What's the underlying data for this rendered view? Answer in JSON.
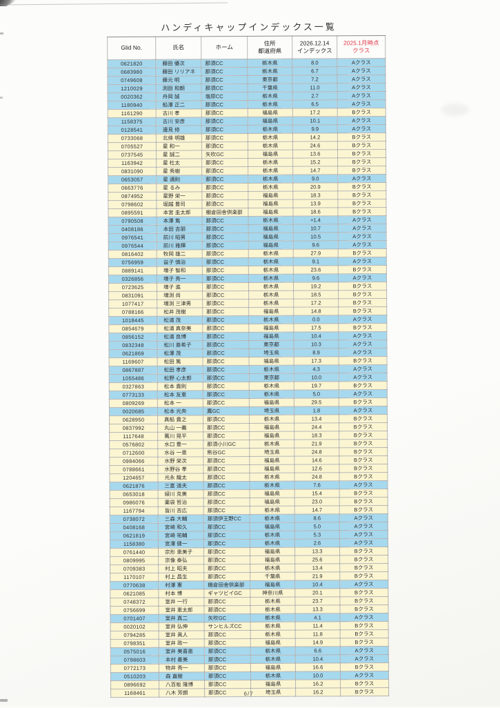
{
  "page": {
    "title": "ハンディキャップインデックス一覧",
    "footer_page": "6/7"
  },
  "colors": {
    "class_a_row": "#a6d8ee",
    "class_b_row": "#fbf5d1",
    "highlight_header": "#e0394a",
    "grid_border": "#7d7d7d"
  },
  "table": {
    "headers": [
      {
        "label": "Glid No."
      },
      {
        "label": "氏名"
      },
      {
        "label": "ホーム"
      },
      {
        "label": "住所\n都道府県"
      },
      {
        "label": "2026.12.14\nインデックス"
      },
      {
        "label": "2025.1月時点\nクラス"
      }
    ],
    "rows": [
      {
        "id": "0621820",
        "name": "藤田 優次",
        "home": "那須CC",
        "pref": "栃木県",
        "idx": "8.0",
        "cls": "Aクラス"
      },
      {
        "id": "0683980",
        "name": "藤田 リリアネ",
        "home": "那須CC",
        "pref": "栃木県",
        "idx": "6.7",
        "cls": "Aクラス"
      },
      {
        "id": "0749608",
        "name": "藤元 明",
        "home": "那須CC",
        "pref": "東京都",
        "idx": "7.2",
        "cls": "Aクラス"
      },
      {
        "id": "1210029",
        "name": "渕田 和朗",
        "home": "那須CC",
        "pref": "千葉県",
        "idx": "11.0",
        "cls": "Aクラス"
      },
      {
        "id": "0020362",
        "name": "舟岡 誠",
        "home": "塩原CC",
        "pref": "栃木県",
        "idx": "2.7",
        "cls": "Aクラス"
      },
      {
        "id": "1180940",
        "name": "船澤 正二",
        "home": "那須CC",
        "pref": "栃木県",
        "idx": "6.5",
        "cls": "Aクラス"
      },
      {
        "id": "1161290",
        "name": "古川 孝",
        "home": "那須CC",
        "pref": "福島県",
        "idx": "17.2",
        "cls": "Bクラス"
      },
      {
        "id": "1158375",
        "name": "古川 安彦",
        "home": "那須CC",
        "pref": "福島県",
        "idx": "10.1",
        "cls": "Aクラス"
      },
      {
        "id": "0128541",
        "name": "邊見 修",
        "home": "那須CC",
        "pref": "栃木県",
        "idx": "9.9",
        "cls": "Aクラス"
      },
      {
        "id": "0733068",
        "name": "北條 明雄",
        "home": "那須CC",
        "pref": "栃木県",
        "idx": "14.2",
        "cls": "Bクラス"
      },
      {
        "id": "0705527",
        "name": "星 和一",
        "home": "那須CC",
        "pref": "栃木県",
        "idx": "24.6",
        "cls": "Bクラス"
      },
      {
        "id": "0737545",
        "name": "星 誠二",
        "home": "矢吹GC",
        "pref": "福島県",
        "idx": "13.6",
        "cls": "Bクラス"
      },
      {
        "id": "1163942",
        "name": "星 杜太",
        "home": "那須CC",
        "pref": "栃木県",
        "idx": "15.2",
        "cls": "Bクラス"
      },
      {
        "id": "0831090",
        "name": "星 秀樹",
        "home": "那須CC",
        "pref": "栃木県",
        "idx": "14.7",
        "cls": "Bクラス"
      },
      {
        "id": "0653057",
        "name": "星 通則",
        "home": "那須CC",
        "pref": "栃木県",
        "idx": "9.0",
        "cls": "Aクラス"
      },
      {
        "id": "0663776",
        "name": "星 るみ",
        "home": "那須CC",
        "pref": "栃木県",
        "idx": "20.9",
        "cls": "Bクラス"
      },
      {
        "id": "0874952",
        "name": "星野 栄一",
        "home": "那須CC",
        "pref": "福島県",
        "idx": "18.3",
        "cls": "Bクラス"
      },
      {
        "id": "0798602",
        "name": "堀越 豊司",
        "home": "那須CC",
        "pref": "福島県",
        "idx": "13.9",
        "cls": "Bクラス"
      },
      {
        "id": "0895591",
        "name": "本宮 圭太郎",
        "home": "棚倉田舎倶楽部",
        "pref": "福島県",
        "idx": "18.6",
        "cls": "Bクラス"
      },
      {
        "id": "0790508",
        "name": "本澤 篤",
        "home": "那須CC",
        "pref": "栃木県",
        "idx": "+1.4",
        "cls": "Aクラス"
      },
      {
        "id": "0408186",
        "name": "本田 吉朋",
        "home": "那須CC",
        "pref": "福島県",
        "idx": "10.7",
        "cls": "Aクラス"
      },
      {
        "id": "0976541",
        "name": "前川 昭男",
        "home": "那須CC",
        "pref": "福島県",
        "idx": "10.5",
        "cls": "Aクラス"
      },
      {
        "id": "0976544",
        "name": "前川 雅輝",
        "home": "那須CC",
        "pref": "福島県",
        "idx": "9.6",
        "cls": "Aクラス"
      },
      {
        "id": "0816402",
        "name": "牧岡 雄二",
        "home": "那須CC",
        "pref": "栃木県",
        "idx": "27.9",
        "cls": "Bクラス"
      },
      {
        "id": "0756959",
        "name": "益子 慎治",
        "home": "那須CC",
        "pref": "栃木県",
        "idx": "9.1",
        "cls": "Aクラス"
      },
      {
        "id": "0889141",
        "name": "増子 智和",
        "home": "那須CC",
        "pref": "栃木県",
        "idx": "23.6",
        "cls": "Bクラス"
      },
      {
        "id": "0326856",
        "name": "増子 秀一",
        "home": "那須CC",
        "pref": "栃木県",
        "idx": "9.6",
        "cls": "Aクラス"
      },
      {
        "id": "0723625",
        "name": "増子 進",
        "home": "那須CC",
        "pref": "栃木県",
        "idx": "19.2",
        "cls": "Bクラス"
      },
      {
        "id": "0831091",
        "name": "増渕 尚",
        "home": "那須CC",
        "pref": "栃木県",
        "idx": "18.5",
        "cls": "Bクラス"
      },
      {
        "id": "1077417",
        "name": "増渕 三津男",
        "home": "那須CC",
        "pref": "栃木県",
        "idx": "17.2",
        "cls": "Bクラス"
      },
      {
        "id": "0788166",
        "name": "松井 茂樹",
        "home": "那須CC",
        "pref": "福島県",
        "idx": "14.8",
        "cls": "Bクラス"
      },
      {
        "id": "1018445",
        "name": "松浦 茂",
        "home": "那須CC",
        "pref": "栃木県",
        "idx": "0.0",
        "cls": "Aクラス"
      },
      {
        "id": "0854679",
        "name": "松浦 真奈美",
        "home": "那須CC",
        "pref": "福島県",
        "idx": "17.5",
        "cls": "Bクラス"
      },
      {
        "id": "0856152",
        "name": "松浦 良博",
        "home": "那須CC",
        "pref": "福島県",
        "idx": "10.4",
        "cls": "Aクラス"
      },
      {
        "id": "0832348",
        "name": "松川 亜希子",
        "home": "那須CC",
        "pref": "東京都",
        "idx": "10.3",
        "cls": "Aクラス"
      },
      {
        "id": "0621869",
        "name": "松澤 茂",
        "home": "那須CC",
        "pref": "埼玉県",
        "idx": "8.9",
        "cls": "Aクラス"
      },
      {
        "id": "1169607",
        "name": "松田 篤",
        "home": "那須CC",
        "pref": "福島県",
        "idx": "17.3",
        "cls": "Bクラス"
      },
      {
        "id": "0867887",
        "name": "松田 孝彦",
        "home": "那須CC",
        "pref": "栃木県",
        "idx": "4.3",
        "cls": "Aクラス"
      },
      {
        "id": "1055486",
        "name": "松野 心太郎",
        "home": "那須CC",
        "pref": "東京都",
        "idx": "10.0",
        "cls": "Aクラス"
      },
      {
        "id": "0327863",
        "name": "松本 貴則",
        "home": "那須CC",
        "pref": "栃木県",
        "idx": "19.7",
        "cls": "Bクラス"
      },
      {
        "id": "0773133",
        "name": "松本 友恵",
        "home": "那須CC",
        "pref": "栃木県",
        "idx": "5.0",
        "cls": "Aクラス"
      },
      {
        "id": "0809269",
        "name": "松本 一",
        "home": "那須CC",
        "pref": "福島県",
        "idx": "29.5",
        "cls": "Bクラス"
      },
      {
        "id": "0020685",
        "name": "松本 光央",
        "home": "鷹GC",
        "pref": "埼玉県",
        "idx": "1.8",
        "cls": "Aクラス"
      },
      {
        "id": "0628950",
        "name": "真船 貴之",
        "home": "那須CC",
        "pref": "栃木県",
        "idx": "13.4",
        "cls": "Bクラス"
      },
      {
        "id": "0837992",
        "name": "丸山 一義",
        "home": "那須CC",
        "pref": "福島県",
        "idx": "24.4",
        "cls": "Bクラス"
      },
      {
        "id": "1117648",
        "name": "萬川 晃平",
        "home": "那須CC",
        "pref": "福島県",
        "idx": "18.3",
        "cls": "Bクラス"
      },
      {
        "id": "0576802",
        "name": "水口 豊一",
        "home": "那須小川GC",
        "pref": "栃木県",
        "idx": "21.9",
        "cls": "Bクラス"
      },
      {
        "id": "0712600",
        "name": "水谷 一恵",
        "home": "熊谷GC",
        "pref": "埼玉県",
        "idx": "24.8",
        "cls": "Bクラス"
      },
      {
        "id": "0984066",
        "name": "水野 栄次",
        "home": "那須CC",
        "pref": "福島県",
        "idx": "14.6",
        "cls": "Bクラス"
      },
      {
        "id": "0788661",
        "name": "水野谷 孝",
        "home": "那須CC",
        "pref": "福島県",
        "idx": "12.6",
        "cls": "Bクラス"
      },
      {
        "id": "1204657",
        "name": "光永 龍太",
        "home": "那須CC",
        "pref": "栃木県",
        "idx": "24.8",
        "cls": "Bクラス"
      },
      {
        "id": "0621876",
        "name": "三富 道夫",
        "home": "那須CC",
        "pref": "栃木県",
        "idx": "7.6",
        "cls": "Aクラス"
      },
      {
        "id": "0653018",
        "name": "緑川 克美",
        "home": "那須CC",
        "pref": "福島県",
        "idx": "15.4",
        "cls": "Bクラス"
      },
      {
        "id": "0986076",
        "name": "薬袋 哲治",
        "home": "那須CC",
        "pref": "福島県",
        "idx": "23.0",
        "cls": "Bクラス"
      },
      {
        "id": "1167794",
        "name": "皆川 吉広",
        "home": "那須CC",
        "pref": "栃木県",
        "idx": "14.7",
        "cls": "Bクラス"
      },
      {
        "id": "0738072",
        "name": "三森 大輔",
        "home": "那須伊王野CC",
        "pref": "栃木県",
        "idx": "8.6",
        "cls": "Aクラス"
      },
      {
        "id": "0408168",
        "name": "宮崎 和久",
        "home": "那須CC",
        "pref": "福島県",
        "idx": "5.0",
        "cls": "Aクラス"
      },
      {
        "id": "0621819",
        "name": "宮崎 祐輔",
        "home": "那須CC",
        "pref": "栃木県",
        "idx": "5.3",
        "cls": "Aクラス"
      },
      {
        "id": "1158380",
        "name": "宮澤 健一",
        "home": "那須CC",
        "pref": "栃木県",
        "idx": "2.6",
        "cls": "Aクラス"
      },
      {
        "id": "0761440",
        "name": "宗形 恵美子",
        "home": "那須CC",
        "pref": "福島県",
        "idx": "13.3",
        "cls": "Bクラス"
      },
      {
        "id": "0809995",
        "name": "宗像 泰弘",
        "home": "那須CC",
        "pref": "福島県",
        "idx": "25.6",
        "cls": "Bクラス"
      },
      {
        "id": "0709383",
        "name": "村上 昭夫",
        "home": "那須CC",
        "pref": "栃木県",
        "idx": "13.4",
        "cls": "Bクラス"
      },
      {
        "id": "1170107",
        "name": "村上 昌生",
        "home": "那須CC",
        "pref": "千葉県",
        "idx": "21.9",
        "cls": "Bクラス"
      },
      {
        "id": "0770638",
        "name": "村澤 憲",
        "home": "棚倉田舎倶楽部",
        "pref": "福島県",
        "idx": "10.4",
        "cls": "Aクラス"
      },
      {
        "id": "0621085",
        "name": "村本 博",
        "home": "ギャツビイGC",
        "pref": "神奈川県",
        "idx": "20.1",
        "cls": "Bクラス"
      },
      {
        "id": "0748372",
        "name": "室井 一行",
        "home": "那須CC",
        "pref": "栃木県",
        "idx": "23.7",
        "cls": "Bクラス"
      },
      {
        "id": "0756699",
        "name": "室井 恵太郎",
        "home": "那須CC",
        "pref": "栃木県",
        "idx": "13.3",
        "cls": "Bクラス"
      },
      {
        "id": "0701407",
        "name": "室井 真二",
        "home": "矢吹GC",
        "pref": "栃木県",
        "idx": "4.1",
        "cls": "Aクラス"
      },
      {
        "id": "0020102",
        "name": "室井 弘伸",
        "home": "サンヒルズCC",
        "pref": "栃木県",
        "idx": "11.4",
        "cls": "Bクラス"
      },
      {
        "id": "0794285",
        "name": "室井 眞人",
        "home": "那須CC",
        "pref": "栃木県",
        "idx": "11.8",
        "cls": "Bクラス"
      },
      {
        "id": "0798351",
        "name": "室井 政一",
        "home": "那須CC",
        "pref": "福島県",
        "idx": "14.9",
        "cls": "Bクラス"
      },
      {
        "id": "0575016",
        "name": "室井 美喜恵",
        "home": "那須CC",
        "pref": "栃木県",
        "idx": "6.6",
        "cls": "Aクラス"
      },
      {
        "id": "0798603",
        "name": "本村 善美",
        "home": "那須CC",
        "pref": "栃木県",
        "idx": "10.4",
        "cls": "Aクラス"
      },
      {
        "id": "0772173",
        "name": "物井 秀一",
        "home": "那須CC",
        "pref": "福島県",
        "idx": "16.6",
        "cls": "Bクラス"
      },
      {
        "id": "0510203",
        "name": "森 直樹",
        "home": "那須CC",
        "pref": "栃木県",
        "idx": "10.0",
        "cls": "Aクラス"
      },
      {
        "id": "0896692",
        "name": "八百板 隆博",
        "home": "那須CC",
        "pref": "福島県",
        "idx": "16.2",
        "cls": "Bクラス"
      },
      {
        "id": "1168461",
        "name": "八木 芳朗",
        "home": "那須CC",
        "pref": "埼玉県",
        "idx": "16.2",
        "cls": "Bクラス"
      }
    ]
  }
}
